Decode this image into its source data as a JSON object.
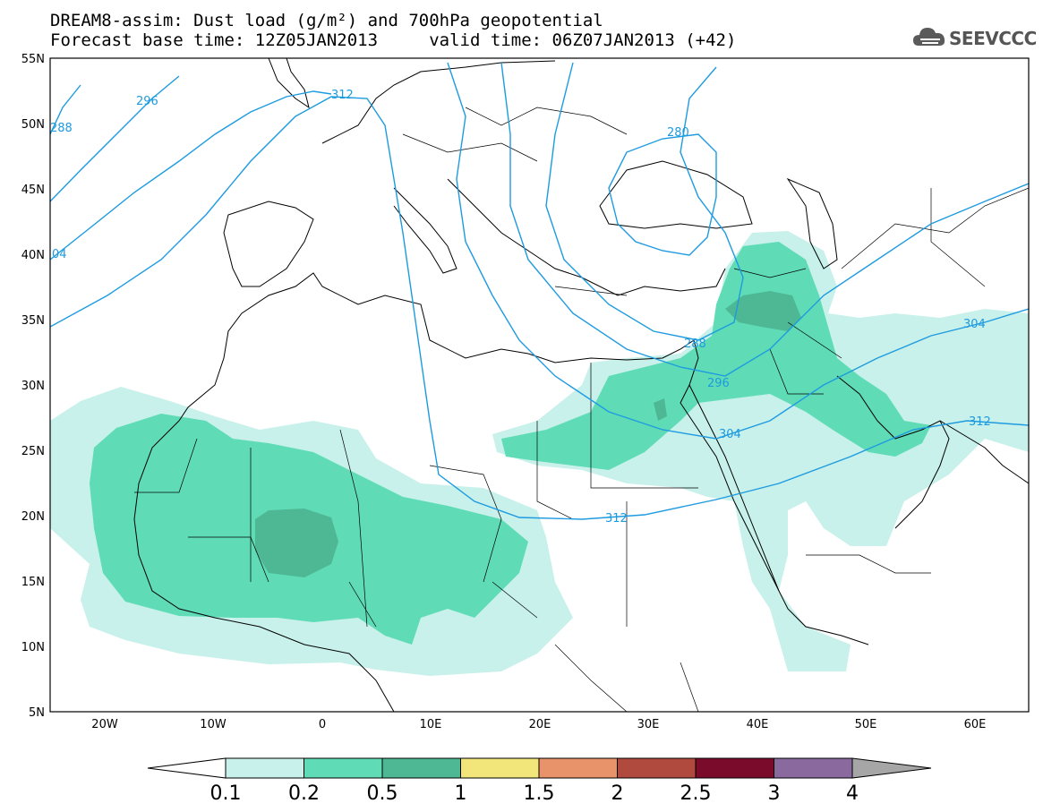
{
  "title_line1": "DREAM8-assim: Dust load (g/m²) and 700hPa geopotential",
  "title_line2": "Forecast base time: 12Z05JAN2013     valid time: 06Z07JAN2013 (+42)",
  "logo_text": "SEEVCCC",
  "y_axis_labels": [
    "55N",
    "50N",
    "45N",
    "40N",
    "35N",
    "30N",
    "25N",
    "20N",
    "15N",
    "10N",
    "5N"
  ],
  "x_axis_labels": [
    "20W",
    "10W",
    "0",
    "10E",
    "20E",
    "30E",
    "40E",
    "50E",
    "60E"
  ],
  "contour_labels": [
    "296",
    "288",
    "312",
    "04",
    "280",
    "288",
    "296",
    "304",
    "304",
    "312",
    "312"
  ],
  "colorbar": {
    "labels": [
      "0.1",
      "0.2",
      "0.5",
      "1",
      "1.5",
      "2",
      "2.5",
      "3",
      "4"
    ],
    "colors": [
      "#c7f1ea",
      "#5fdcb6",
      "#4db893",
      "#f2e67a",
      "#e9936a",
      "#b04a3e",
      "#7a0b2a",
      "#8a6a9e",
      "#a6a6a6"
    ]
  },
  "colors": {
    "contour": "#1e9be0",
    "frame": "#000000"
  }
}
